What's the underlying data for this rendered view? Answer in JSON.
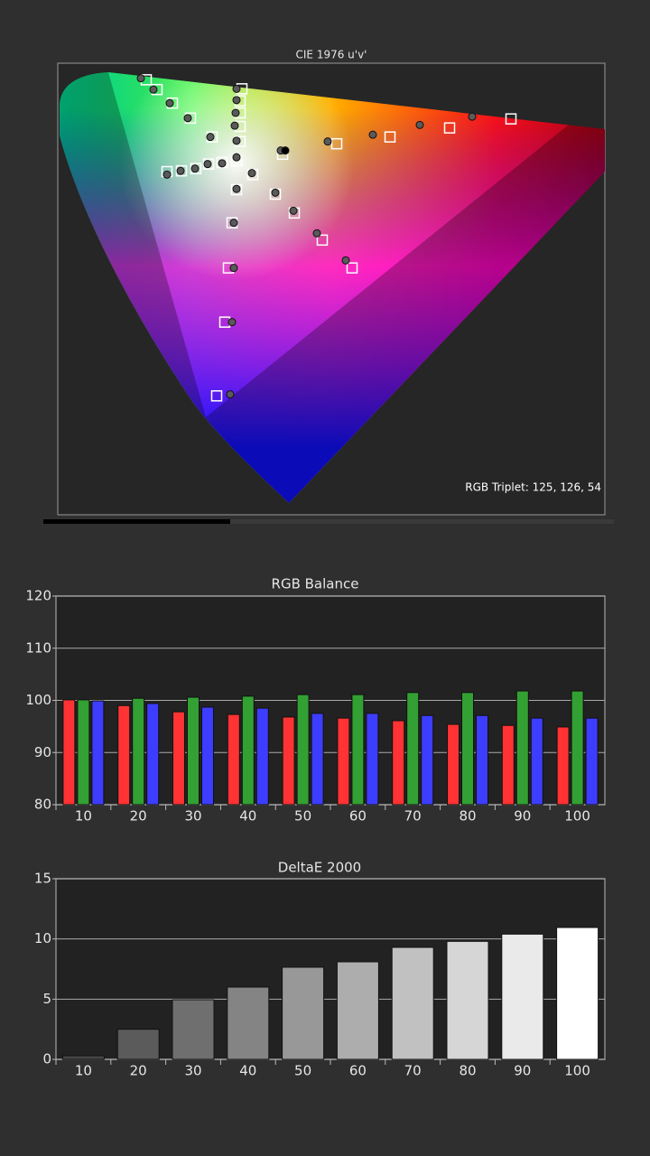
{
  "chart_data": [
    {
      "type": "scatter",
      "title": "CIE 1976 u'v'",
      "annotation": "RGB Triplet: 125, 126, 54",
      "xlim": [
        0,
        0.6
      ],
      "ylim": [
        0,
        0.6
      ],
      "series": [
        {
          "marker": "square",
          "color": "#ffffff",
          "x": [
            0.098,
            0.11,
            0.127,
            0.147,
            0.171,
            0.198,
            0.204,
            0.202,
            0.202,
            0.202,
            0.202,
            0.121,
            0.137,
            0.153,
            0.167,
            0.182,
            0.249,
            0.309,
            0.368,
            0.434,
            0.502,
            0.198,
            0.193,
            0.189,
            0.185,
            0.176,
            0.216,
            0.241,
            0.262,
            0.293,
            0.326
          ],
          "y": [
            0.578,
            0.565,
            0.547,
            0.527,
            0.502,
            0.47,
            0.566,
            0.55,
            0.534,
            0.516,
            0.496,
            0.456,
            0.457,
            0.46,
            0.466,
            0.468,
            0.479,
            0.493,
            0.502,
            0.514,
            0.526,
            0.432,
            0.388,
            0.328,
            0.256,
            0.158,
            0.452,
            0.426,
            0.401,
            0.365,
            0.328
          ]
        },
        {
          "marker": "circle",
          "color": "#5a5a5a",
          "x": [
            0.092,
            0.106,
            0.124,
            0.144,
            0.169,
            0.198,
            0.198,
            0.198,
            0.197,
            0.196,
            0.198,
            0.121,
            0.136,
            0.152,
            0.166,
            0.182,
            0.247,
            0.299,
            0.349,
            0.401,
            0.459,
            0.198,
            0.195,
            0.195,
            0.193,
            0.191,
            0.215,
            0.241,
            0.261,
            0.287,
            0.319
          ],
          "y": [
            0.58,
            0.565,
            0.547,
            0.527,
            0.502,
            0.475,
            0.566,
            0.551,
            0.534,
            0.517,
            0.497,
            0.452,
            0.457,
            0.46,
            0.466,
            0.467,
            0.484,
            0.496,
            0.505,
            0.518,
            0.529,
            0.433,
            0.388,
            0.328,
            0.256,
            0.16,
            0.454,
            0.428,
            0.404,
            0.374,
            0.338
          ]
        },
        {
          "marker": "circle",
          "color": "#000000",
          "x": [
            0.252
          ],
          "y": [
            0.484
          ]
        }
      ]
    },
    {
      "type": "bar",
      "title": "RGB Balance",
      "categories": [
        "10",
        "20",
        "30",
        "40",
        "50",
        "60",
        "70",
        "80",
        "90",
        "100"
      ],
      "series": [
        {
          "color": "#ff3333",
          "values": [
            100.1,
            99.0,
            97.8,
            97.3,
            96.8,
            96.6,
            96.1,
            95.4,
            95.2,
            94.9
          ]
        },
        {
          "color": "#33a033",
          "values": [
            100.1,
            100.4,
            100.6,
            100.8,
            101.1,
            101.1,
            101.5,
            101.5,
            101.8,
            101.8
          ]
        },
        {
          "color": "#3d3dff",
          "values": [
            99.9,
            99.4,
            98.7,
            98.5,
            97.5,
            97.5,
            97.1,
            97.1,
            96.6,
            96.6
          ]
        }
      ],
      "ylim": [
        80,
        120
      ],
      "yticks": [
        80,
        90,
        100,
        110,
        120
      ],
      "grid": true
    },
    {
      "type": "bar",
      "title": "DeltaE 2000",
      "categories": [
        "10",
        "20",
        "30",
        "40",
        "50",
        "60",
        "70",
        "80",
        "90",
        "100"
      ],
      "series": [
        {
          "values": [
            0.3,
            2.5,
            4.95,
            6.0,
            7.65,
            8.1,
            9.3,
            9.8,
            10.4,
            10.95
          ]
        }
      ],
      "ylim": [
        0,
        15
      ],
      "yticks": [
        0,
        5,
        10,
        15
      ],
      "grid": true
    }
  ]
}
